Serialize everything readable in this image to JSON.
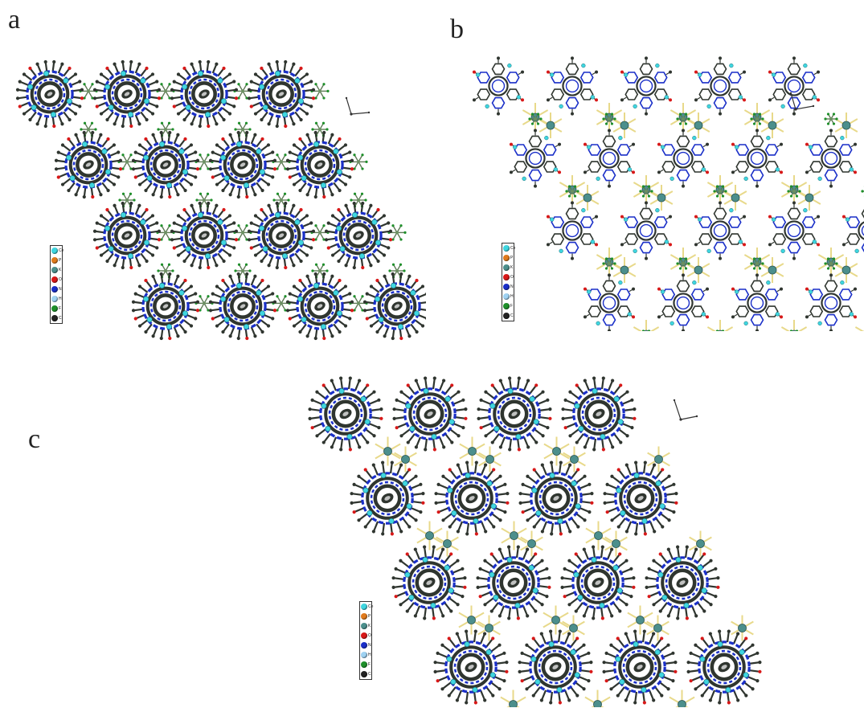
{
  "panels": [
    {
      "label": "a",
      "style": "dense",
      "cols": 4,
      "rows": 4,
      "counter": "F",
      "legend": "primary"
    },
    {
      "label": "b",
      "style": "wire",
      "cols": 5,
      "rows": 4,
      "counter": "K",
      "legend": "primary"
    },
    {
      "label": "c",
      "style": "dense",
      "cols": 4,
      "rows": 4,
      "counter": "K",
      "legend": "primary"
    }
  ],
  "legend": {
    "primary": [
      {
        "symbol": "Ce",
        "color": "#3fd6e0"
      },
      {
        "symbol": "P",
        "color": "#e07a1c"
      },
      {
        "symbol": "K",
        "color": "#4c8f8c"
      },
      {
        "symbol": "O",
        "color": "#d81818"
      },
      {
        "symbol": "N",
        "color": "#1a2fc8"
      },
      {
        "symbol": "H",
        "color": "#9fd2f2"
      },
      {
        "symbol": "F",
        "color": "#1e8f2a"
      },
      {
        "symbol": "C",
        "color": "#222222"
      }
    ]
  },
  "colors": {
    "carbon": "#2f352f",
    "ring": "#1a2fc8",
    "cerium": "#3fd6e0",
    "oxygen": "#d81818",
    "fluorine": "#1e8f2a",
    "potassium": "#4c8f8c",
    "k_bond": "#e8d98a",
    "pf6_bond": "#5e7a55"
  }
}
